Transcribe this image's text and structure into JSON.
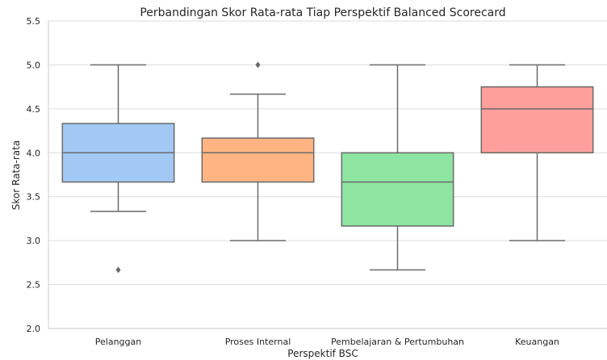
{
  "chart_data": {
    "type": "box",
    "title": "Perbandingan Skor Rata-rata Tiap Perspektif Balanced Scorecard",
    "xlabel": "Perspektif BSC",
    "ylabel": "Skor Rata-rata",
    "ylim": [
      2.0,
      5.5
    ],
    "yticks": [
      "2.0",
      "2.5",
      "3.0",
      "3.5",
      "4.0",
      "4.5",
      "5.0",
      "5.5"
    ],
    "grid": "horizontal",
    "categories": [
      "Pelanggan",
      "Proses Internal",
      "Pembelajaran & Pertumbuhan",
      "Keuangan"
    ],
    "boxes": [
      {
        "category": "Pelanggan",
        "whisker_low": 3.333,
        "q1": 3.667,
        "median": 4.0,
        "q3": 4.333,
        "whisker_high": 5.0,
        "outliers": [
          2.667
        ],
        "color": "#a1c9f4"
      },
      {
        "category": "Proses Internal",
        "whisker_low": 3.0,
        "q1": 3.667,
        "median": 4.0,
        "q3": 4.167,
        "whisker_high": 4.667,
        "outliers": [
          5.0
        ],
        "color": "#ffb482"
      },
      {
        "category": "Pembelajaran & Pertumbuhan",
        "whisker_low": 2.667,
        "q1": 3.167,
        "median": 3.667,
        "q3": 4.0,
        "whisker_high": 5.0,
        "outliers": [],
        "color": "#8de5a1"
      },
      {
        "category": "Keuangan",
        "whisker_low": 3.0,
        "q1": 4.0,
        "median": 4.5,
        "q3": 4.75,
        "whisker_high": 5.0,
        "outliers": [],
        "color": "#ff9f9b"
      }
    ]
  }
}
